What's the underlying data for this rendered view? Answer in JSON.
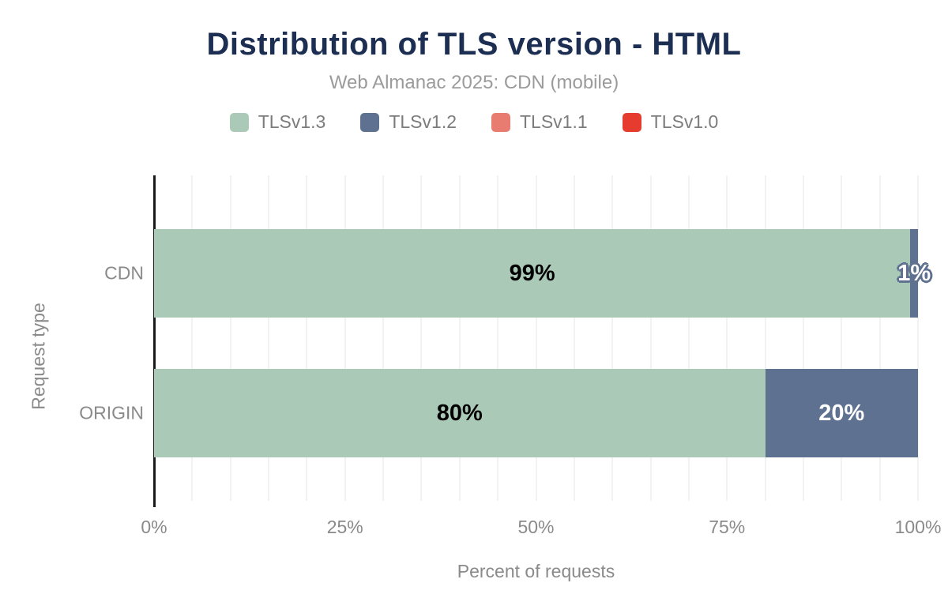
{
  "chart_data": {
    "type": "bar",
    "orientation": "horizontal-stacked",
    "title": "Distribution of TLS version - HTML",
    "subtitle": "Web Almanac 2025: CDN (mobile)",
    "categories": [
      "CDN",
      "ORIGIN"
    ],
    "series": [
      {
        "name": "TLSv1.3",
        "color": "#aac9b6",
        "label_color": "#000000",
        "values": [
          99,
          80
        ]
      },
      {
        "name": "TLSv1.2",
        "color": "#5e7191",
        "label_color": "#ffffff",
        "values": [
          1,
          20
        ]
      },
      {
        "name": "TLSv1.1",
        "color": "#e87c71",
        "label_color": "#ffffff",
        "values": [
          0,
          0
        ]
      },
      {
        "name": "TLSv1.0",
        "color": "#e63c2f",
        "label_color": "#ffffff",
        "values": [
          0,
          0
        ]
      }
    ],
    "data_labels": [
      [
        "99%",
        "1%"
      ],
      [
        "80%",
        "20%"
      ]
    ],
    "xlabel": "Percent of requests",
    "ylabel": "Request type",
    "xlim": [
      0,
      100
    ],
    "x_ticks": [
      {
        "value": 0,
        "label": "0%"
      },
      {
        "value": 25,
        "label": "25%"
      },
      {
        "value": 50,
        "label": "50%"
      },
      {
        "value": 75,
        "label": "75%"
      },
      {
        "value": 100,
        "label": "100%"
      }
    ],
    "gridline_step": 5,
    "legend_position": "top",
    "styles": {
      "title_color": "#1c2e52",
      "subtitle_color": "#9b9b9b",
      "axis_text_color": "#8a8a8a",
      "gridline_color": "#f2f2f2",
      "axis_line_color": "#1b1b1b",
      "small_label_outline_color": "#5e7191"
    }
  }
}
